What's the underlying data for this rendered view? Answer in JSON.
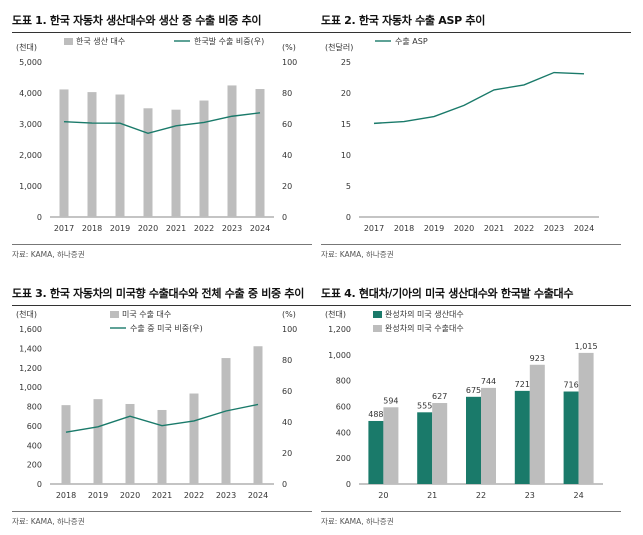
{
  "colors": {
    "gray_bar": "#bdbdbd",
    "green": "#1a7a6a",
    "text": "#333333"
  },
  "chart_data": [
    {
      "id": "c1",
      "type": "bar",
      "title": "도표 1. 한국 자동차 생산대수와 생산 중 수출 비중 추이",
      "source": "자료: KAMA, 하나증권",
      "left_unit": "(천대)",
      "right_unit": "(%)",
      "categories": [
        "2017",
        "2018",
        "2019",
        "2020",
        "2021",
        "2022",
        "2023",
        "2024"
      ],
      "ylim": [
        0,
        5000
      ],
      "yticks": [
        "0",
        "1,000",
        "2,000",
        "3,000",
        "4,000",
        "5,000"
      ],
      "y2lim": [
        0,
        100
      ],
      "y2ticks": [
        "0",
        "20",
        "40",
        "60",
        "80",
        "100"
      ],
      "series": [
        {
          "name": "한국 생산 대수",
          "kind": "bar",
          "axis": "left",
          "color": "#bdbdbd",
          "values": [
            4115,
            4029,
            3951,
            3507,
            3462,
            3757,
            4244,
            4128
          ]
        },
        {
          "name": "한국발 수출 비중(우)",
          "kind": "line",
          "axis": "right",
          "color": "#1a7a6a",
          "values": [
            61.5,
            60.6,
            60.5,
            54.0,
            58.8,
            61.0,
            65.0,
            67.2
          ]
        }
      ]
    },
    {
      "id": "c2",
      "type": "line",
      "title": "도표 2. 한국 자동차 수출 ASP 추이",
      "source": "자료: KAMA, 하나증권",
      "left_unit": "(천달러)",
      "right_unit": "",
      "categories": [
        "2017",
        "2018",
        "2019",
        "2020",
        "2021",
        "2022",
        "2023",
        "2024"
      ],
      "ylim": [
        0,
        25
      ],
      "yticks": [
        "0",
        "5",
        "10",
        "15",
        "20",
        "25"
      ],
      "series": [
        {
          "name": "수출 ASP",
          "kind": "line",
          "axis": "left",
          "color": "#1a7a6a",
          "values": [
            15.1,
            15.4,
            16.2,
            18.0,
            20.5,
            21.3,
            23.3,
            23.1
          ]
        }
      ]
    },
    {
      "id": "c3",
      "type": "bar",
      "title": "도표 3. 한국 자동차의 미국향 수출대수와 전체 수출 중 비중 추이",
      "source": "자료: KAMA, 하나증권",
      "left_unit": "(천대)",
      "right_unit": "(%)",
      "categories": [
        "2018",
        "2019",
        "2020",
        "2021",
        "2022",
        "2023",
        "2024"
      ],
      "ylim": [
        0,
        1600
      ],
      "yticks": [
        "0",
        "200",
        "400",
        "600",
        "800",
        "1,000",
        "1,200",
        "1,400",
        "1,600"
      ],
      "y2lim": [
        0,
        100
      ],
      "y2ticks": [
        "0",
        "20",
        "40",
        "60",
        "80",
        "100"
      ],
      "series": [
        {
          "name": "미국 수출 대수",
          "kind": "bar",
          "axis": "left",
          "color": "#bdbdbd",
          "values": [
            814,
            876,
            826,
            764,
            934,
            1300,
            1422
          ]
        },
        {
          "name": "수출 중 미국 비중(우)",
          "kind": "line",
          "axis": "right",
          "color": "#1a7a6a",
          "values": [
            33.4,
            36.9,
            43.7,
            37.6,
            40.7,
            47.1,
            51.3
          ]
        }
      ]
    },
    {
      "id": "c4",
      "type": "bar",
      "title": "도표 4. 현대차/기아의 미국 생산대수와 한국발 수출대수",
      "source": "자료: KAMA, 하나증권",
      "left_unit": "(천대)",
      "right_unit": "",
      "categories": [
        "20",
        "21",
        "22",
        "23",
        "24"
      ],
      "ylim": [
        0,
        1200
      ],
      "yticks": [
        "0",
        "200",
        "400",
        "600",
        "800",
        "1,000",
        "1,200"
      ],
      "series": [
        {
          "name": "완성차의 미국 생산대수",
          "kind": "bar",
          "axis": "left",
          "color": "#1a7a6a",
          "values": [
            488,
            555,
            675,
            721,
            716
          ],
          "labels": [
            "488",
            "555",
            "675",
            "721",
            "716"
          ]
        },
        {
          "name": "완성차의 미국 수출대수",
          "kind": "bar",
          "axis": "left",
          "color": "#bdbdbd",
          "values": [
            594,
            627,
            744,
            923,
            1015
          ],
          "labels": [
            "594",
            "627",
            "744",
            "923",
            "1,015"
          ]
        }
      ]
    }
  ]
}
